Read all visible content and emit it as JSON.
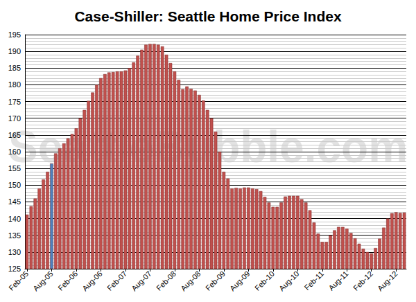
{
  "chart_data": {
    "type": "bar",
    "title": "Case-Shiller: Seattle Home Price Index",
    "annotations": [
      "SeattleBubble.com"
    ],
    "categories": [
      "Feb-05",
      null,
      null,
      null,
      null,
      null,
      "Aug-05",
      null,
      null,
      null,
      null,
      null,
      "Feb-06",
      null,
      null,
      null,
      null,
      null,
      "Aug-06",
      null,
      null,
      null,
      null,
      null,
      "Feb-07",
      null,
      null,
      null,
      null,
      null,
      "Aug-07",
      null,
      null,
      null,
      null,
      null,
      "Feb-08",
      null,
      null,
      null,
      null,
      null,
      "Aug-08",
      null,
      null,
      null,
      null,
      null,
      "Feb-09",
      null,
      null,
      null,
      null,
      null,
      "Aug-09",
      null,
      null,
      null,
      null,
      null,
      "Feb-10",
      null,
      null,
      null,
      null,
      null,
      "Aug-10",
      null,
      null,
      null,
      null,
      null,
      "Feb-11",
      null,
      null,
      null,
      null,
      null,
      "Aug-11",
      null,
      null,
      null,
      null,
      null,
      "Feb-12",
      null,
      null,
      null,
      null,
      null,
      "Aug-12",
      null,
      null
    ],
    "values": [
      141.2,
      143.7,
      146.0,
      149.0,
      151.7,
      154.0,
      156.5,
      159.5,
      161.0,
      162.5,
      164.0,
      165.3,
      167.0,
      170.0,
      172.5,
      175.2,
      177.7,
      180.0,
      182.0,
      183.2,
      183.7,
      183.8,
      184.0,
      184.0,
      184.3,
      185.0,
      186.7,
      188.7,
      190.5,
      192.0,
      192.2,
      192.2,
      192.0,
      191.5,
      189.0,
      186.5,
      184.0,
      181.5,
      178.7,
      179.5,
      178.8,
      178.3,
      177.0,
      175.3,
      172.5,
      170.0,
      166.0,
      160.0,
      154.0,
      152.0,
      149.0,
      149.2,
      149.0,
      149.3,
      149.3,
      149.0,
      148.8,
      148.2,
      146.5,
      144.8,
      143.5,
      143.5,
      144.8,
      146.6,
      146.8,
      146.8,
      146.8,
      145.8,
      144.8,
      142.5,
      138.8,
      135.5,
      133.0,
      133.0,
      135.0,
      136.5,
      137.5,
      137.5,
      137.0,
      135.7,
      134.1,
      132.5,
      131.0,
      130.0,
      129.6,
      131.2,
      134.0,
      137.3,
      140.0,
      141.6,
      141.9,
      141.7,
      141.8
    ],
    "colors": [
      "#c0504d",
      "#c0504d",
      "#c0504d",
      "#c0504d",
      "#c0504d",
      "#c0504d",
      "#4f81bd",
      "#c0504d",
      "#c0504d",
      "#c0504d",
      "#c0504d",
      "#c0504d",
      "#c0504d",
      "#c0504d",
      "#c0504d",
      "#c0504d",
      "#c0504d",
      "#c0504d",
      "#c0504d",
      "#c0504d",
      "#c0504d",
      "#c0504d",
      "#c0504d",
      "#c0504d",
      "#c0504d",
      "#c0504d",
      "#c0504d",
      "#c0504d",
      "#c0504d",
      "#c0504d",
      "#c0504d",
      "#c0504d",
      "#c0504d",
      "#c0504d",
      "#c0504d",
      "#c0504d",
      "#c0504d",
      "#c0504d",
      "#c0504d",
      "#c0504d",
      "#c0504d",
      "#c0504d",
      "#c0504d",
      "#c0504d",
      "#c0504d",
      "#c0504d",
      "#c0504d",
      "#c0504d",
      "#c0504d",
      "#c0504d",
      "#c0504d",
      "#c0504d",
      "#c0504d",
      "#c0504d",
      "#c0504d",
      "#c0504d",
      "#c0504d",
      "#c0504d",
      "#c0504d",
      "#c0504d",
      "#c0504d",
      "#c0504d",
      "#c0504d",
      "#c0504d",
      "#c0504d",
      "#c0504d",
      "#c0504d",
      "#c0504d",
      "#c0504d",
      "#c0504d",
      "#c0504d",
      "#c0504d",
      "#c0504d",
      "#c0504d",
      "#c0504d",
      "#c0504d",
      "#c0504d",
      "#c0504d",
      "#c0504d",
      "#c0504d",
      "#c0504d",
      "#c0504d",
      "#c0504d",
      "#c0504d",
      "#c0504d",
      "#c0504d",
      "#c0504d",
      "#c0504d",
      "#c0504d",
      "#c0504d",
      "#c0504d",
      "#c0504d",
      "#c0504d"
    ],
    "ylim": [
      125,
      195
    ],
    "yticks": [
      125,
      130,
      135,
      140,
      145,
      150,
      155,
      160,
      165,
      170,
      175,
      180,
      185,
      190,
      195
    ],
    "grid": true
  }
}
